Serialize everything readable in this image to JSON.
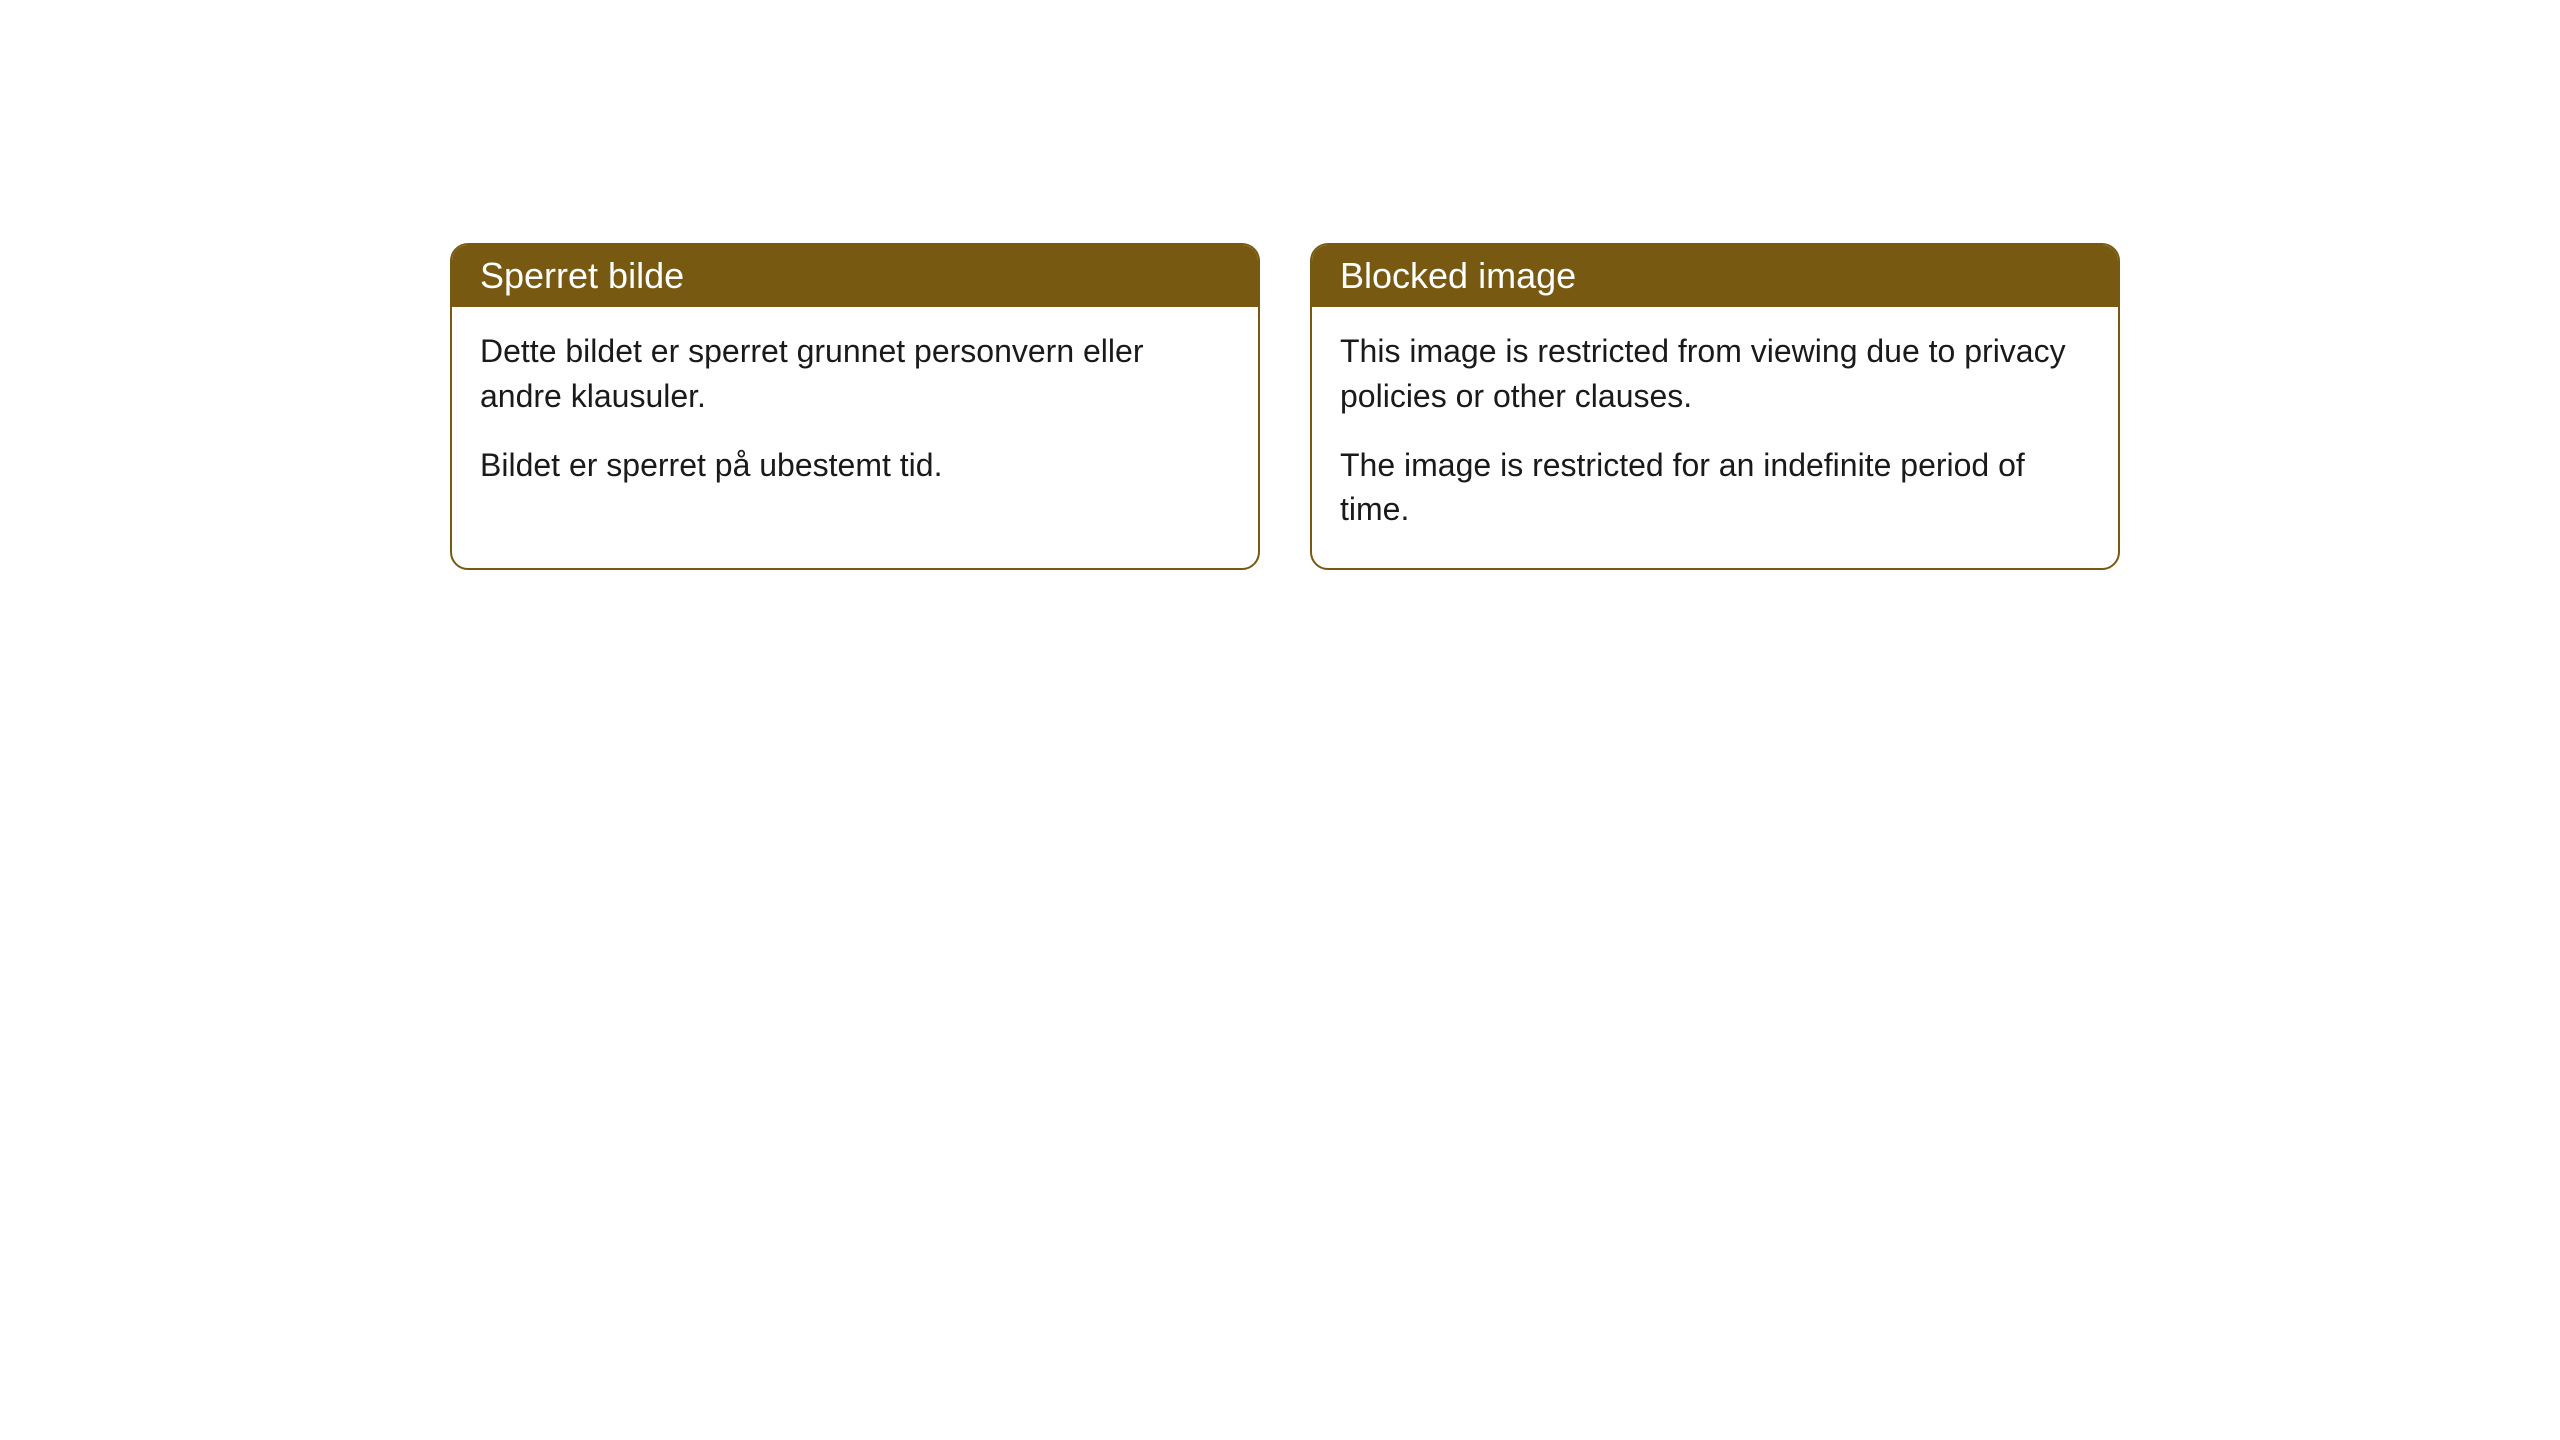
{
  "cards": [
    {
      "title": "Sperret bilde",
      "paragraph1": "Dette bildet er sperret grunnet personvern eller andre klausuler.",
      "paragraph2": "Bildet er sperret på ubestemt tid."
    },
    {
      "title": "Blocked image",
      "paragraph1": "This image is restricted from viewing due to privacy policies or other clauses.",
      "paragraph2": "The image is restricted for an indefinite period of time."
    }
  ],
  "styling": {
    "header_background": "#785912",
    "header_text_color": "#ffffff",
    "border_color": "#785912",
    "body_text_color": "#1a1a1a",
    "card_background": "#ffffff",
    "border_radius": 18,
    "header_fontsize": 36,
    "body_fontsize": 32
  }
}
